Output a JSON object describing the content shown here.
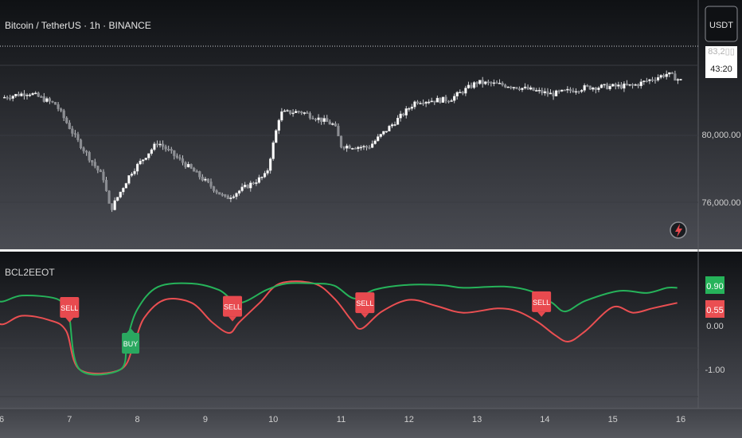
{
  "header": {
    "symbol": "Bitcoin / TetherUS · 1h · BINANCE",
    "currency_button": "USDT"
  },
  "price_pane": {
    "ticks": [
      "80,000.00",
      "76,000.00"
    ],
    "badge_price": "83,2▯▯",
    "badge_countdown": "43:20"
  },
  "indicator_pane": {
    "title": "BCL2EEOT",
    "ticks": [
      "0.00",
      "-1.00"
    ],
    "green_value": "0.90",
    "red_value": "0.55",
    "signals": [
      "SELL",
      "BUY",
      "SELL",
      "SELL",
      "SELL"
    ]
  },
  "xaxis": {
    "ticks": [
      "6",
      "7",
      "8",
      "9",
      "10",
      "11",
      "12",
      "13",
      "14",
      "15",
      "16"
    ]
  },
  "colors": {
    "green_line": "#26b35a",
    "red_line": "#ea4f52",
    "buy_badge": "#2aa860",
    "sell_badge": "#e84a4f"
  },
  "chart_data": [
    {
      "type": "candlestick",
      "title": "Bitcoin / TetherUS · 1h · BINANCE",
      "x_ticks": [
        "6",
        "7",
        "8",
        "9",
        "10",
        "11",
        "12",
        "13",
        "14",
        "15",
        "16"
      ],
      "y_ticks": [
        80000,
        76000
      ],
      "approx_close_path": [
        {
          "x": 6.0,
          "y": 82200
        },
        {
          "x": 6.4,
          "y": 82500
        },
        {
          "x": 6.8,
          "y": 81800
        },
        {
          "x": 7.1,
          "y": 79800
        },
        {
          "x": 7.5,
          "y": 77500
        },
        {
          "x": 7.6,
          "y": 75600
        },
        {
          "x": 7.9,
          "y": 77800
        },
        {
          "x": 8.3,
          "y": 79600
        },
        {
          "x": 8.8,
          "y": 78000
        },
        {
          "x": 9.3,
          "y": 76300
        },
        {
          "x": 9.9,
          "y": 77700
        },
        {
          "x": 10.1,
          "y": 81300
        },
        {
          "x": 10.4,
          "y": 81400
        },
        {
          "x": 10.9,
          "y": 80600
        },
        {
          "x": 11.0,
          "y": 79400
        },
        {
          "x": 11.4,
          "y": 79300
        },
        {
          "x": 11.9,
          "y": 81200
        },
        {
          "x": 12.1,
          "y": 82000
        },
        {
          "x": 12.6,
          "y": 82100
        },
        {
          "x": 13.0,
          "y": 83100
        },
        {
          "x": 13.5,
          "y": 82900
        },
        {
          "x": 14.1,
          "y": 82400
        },
        {
          "x": 14.6,
          "y": 82800
        },
        {
          "x": 15.3,
          "y": 82900
        },
        {
          "x": 15.8,
          "y": 83600
        },
        {
          "x": 16.0,
          "y": 83200
        }
      ]
    },
    {
      "type": "line",
      "title": "BCL2EEOT",
      "y_ticks": [
        0.0,
        -1.0
      ],
      "series": [
        {
          "color": "#26b35a",
          "points": [
            {
              "x": 5.8,
              "y": 0.7
            },
            {
              "x": 6.0,
              "y": 0.58
            },
            {
              "x": 6.3,
              "y": 0.72
            },
            {
              "x": 6.8,
              "y": 0.65
            },
            {
              "x": 6.95,
              "y": 0.4
            },
            {
              "x": 7.0,
              "y": 0.2
            },
            {
              "x": 7.15,
              "y": -1.0
            },
            {
              "x": 7.75,
              "y": -1.0
            },
            {
              "x": 7.85,
              "y": -0.3
            },
            {
              "x": 8.0,
              "y": 0.4
            },
            {
              "x": 8.3,
              "y": 0.92
            },
            {
              "x": 8.8,
              "y": 1.0
            },
            {
              "x": 9.2,
              "y": 0.85
            },
            {
              "x": 9.5,
              "y": 0.55
            },
            {
              "x": 9.9,
              "y": 0.85
            },
            {
              "x": 10.2,
              "y": 1.0
            },
            {
              "x": 10.6,
              "y": 1.0
            },
            {
              "x": 10.9,
              "y": 0.95
            },
            {
              "x": 11.2,
              "y": 0.65
            },
            {
              "x": 11.5,
              "y": 0.86
            },
            {
              "x": 12.0,
              "y": 0.97
            },
            {
              "x": 12.5,
              "y": 0.96
            },
            {
              "x": 12.8,
              "y": 0.9
            },
            {
              "x": 13.4,
              "y": 0.93
            },
            {
              "x": 13.8,
              "y": 0.82
            },
            {
              "x": 14.1,
              "y": 0.56
            },
            {
              "x": 14.3,
              "y": 0.35
            },
            {
              "x": 14.6,
              "y": 0.6
            },
            {
              "x": 15.1,
              "y": 0.83
            },
            {
              "x": 15.5,
              "y": 0.78
            },
            {
              "x": 15.8,
              "y": 0.9
            },
            {
              "x": 15.95,
              "y": 0.9
            }
          ]
        },
        {
          "color": "#ea4f52",
          "points": [
            {
              "x": 5.8,
              "y": 0.3
            },
            {
              "x": 6.0,
              "y": 0.05
            },
            {
              "x": 6.3,
              "y": 0.25
            },
            {
              "x": 6.7,
              "y": 0.15
            },
            {
              "x": 6.95,
              "y": -0.1
            },
            {
              "x": 7.15,
              "y": -1.0
            },
            {
              "x": 7.75,
              "y": -1.0
            },
            {
              "x": 7.95,
              "y": -0.4
            },
            {
              "x": 8.1,
              "y": 0.2
            },
            {
              "x": 8.4,
              "y": 0.62
            },
            {
              "x": 8.8,
              "y": 0.55
            },
            {
              "x": 9.1,
              "y": 0.1
            },
            {
              "x": 9.35,
              "y": -0.15
            },
            {
              "x": 9.5,
              "y": 0.1
            },
            {
              "x": 9.8,
              "y": 0.55
            },
            {
              "x": 10.1,
              "y": 1.0
            },
            {
              "x": 10.6,
              "y": 1.0
            },
            {
              "x": 10.9,
              "y": 0.65
            },
            {
              "x": 11.15,
              "y": 0.15
            },
            {
              "x": 11.3,
              "y": -0.05
            },
            {
              "x": 11.6,
              "y": 0.35
            },
            {
              "x": 12.0,
              "y": 0.62
            },
            {
              "x": 12.4,
              "y": 0.48
            },
            {
              "x": 12.8,
              "y": 0.32
            },
            {
              "x": 13.3,
              "y": 0.42
            },
            {
              "x": 13.6,
              "y": 0.35
            },
            {
              "x": 13.9,
              "y": 0.1
            },
            {
              "x": 14.15,
              "y": -0.2
            },
            {
              "x": 14.35,
              "y": -0.35
            },
            {
              "x": 14.6,
              "y": -0.1
            },
            {
              "x": 15.0,
              "y": 0.45
            },
            {
              "x": 15.3,
              "y": 0.32
            },
            {
              "x": 15.6,
              "y": 0.43
            },
            {
              "x": 15.95,
              "y": 0.55
            }
          ]
        }
      ],
      "signals": [
        {
          "label": "SELL",
          "x": 7.0
        },
        {
          "label": "BUY",
          "x": 7.9
        },
        {
          "label": "SELL",
          "x": 9.4
        },
        {
          "label": "SELL",
          "x": 11.35
        },
        {
          "label": "SELL",
          "x": 13.95
        }
      ],
      "last_values": {
        "green": 0.9,
        "red": 0.55
      }
    }
  ]
}
